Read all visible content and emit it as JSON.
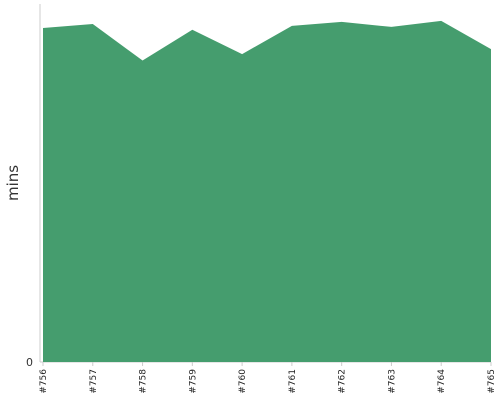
{
  "chart_data": {
    "type": "area",
    "title": "",
    "xlabel": "",
    "ylabel": "mins",
    "categories": [
      "#756",
      "#757",
      "#758",
      "#759",
      "#760",
      "#761",
      "#762",
      "#763",
      "#764",
      "#765"
    ],
    "series": [
      {
        "values": [
          93.3,
          94.4,
          84.2,
          92.8,
          86.0,
          93.9,
          95.0,
          93.6,
          95.3,
          87.4
        ]
      }
    ],
    "ylim": [
      0,
      100
    ],
    "yticks": [
      "0"
    ],
    "grid": false,
    "legend": "none",
    "colors": {
      "area_fill": "#459d6e",
      "axis": "#cccccc"
    }
  }
}
